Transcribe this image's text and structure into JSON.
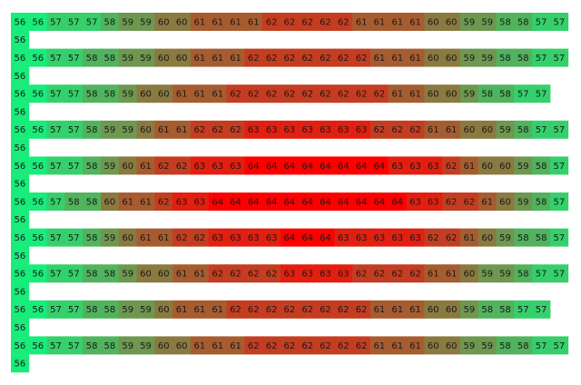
{
  "chart_data": {
    "type": "heatmap",
    "title": "",
    "xlabel": "",
    "ylabel": "",
    "grid": false,
    "legend": "none",
    "color_scale": {
      "min_value": 56,
      "max_value": 64,
      "min_color": "#18ec7a",
      "max_color": "#ff0000"
    },
    "rows": [
      {
        "values": [
          56,
          56,
          57,
          57,
          57,
          58,
          59,
          59,
          60,
          60,
          61,
          61,
          61,
          61,
          62,
          62,
          62,
          62,
          62,
          61,
          61,
          61,
          61,
          60,
          60,
          59,
          59,
          58,
          58,
          57,
          57
        ]
      },
      {
        "values": [
          56
        ]
      },
      {
        "values": [
          56,
          56,
          57,
          57,
          58,
          58,
          59,
          59,
          60,
          60,
          61,
          61,
          61,
          62,
          62,
          62,
          62,
          62,
          62,
          62,
          61,
          61,
          61,
          60,
          60,
          59,
          59,
          58,
          58,
          57,
          57
        ]
      },
      {
        "values": [
          56
        ]
      },
      {
        "values": [
          56,
          56,
          57,
          57,
          58,
          58,
          59,
          60,
          60,
          61,
          61,
          61,
          62,
          62,
          62,
          62,
          62,
          62,
          62,
          62,
          62,
          61,
          61,
          60,
          60,
          59,
          58,
          58,
          57,
          57
        ]
      },
      {
        "values": [
          56
        ]
      },
      {
        "values": [
          56,
          56,
          57,
          57,
          58,
          59,
          59,
          60,
          61,
          61,
          62,
          62,
          62,
          63,
          63,
          63,
          63,
          63,
          63,
          63,
          62,
          62,
          62,
          61,
          61,
          60,
          60,
          59,
          58,
          57,
          57
        ]
      },
      {
        "values": [
          56
        ]
      },
      {
        "values": [
          56,
          56,
          57,
          57,
          58,
          59,
          60,
          61,
          62,
          62,
          63,
          63,
          63,
          64,
          64,
          64,
          64,
          64,
          64,
          64,
          64,
          63,
          63,
          63,
          62,
          61,
          60,
          60,
          59,
          58,
          57
        ]
      },
      {
        "values": [
          56
        ]
      },
      {
        "values": [
          56,
          56,
          57,
          58,
          58,
          60,
          61,
          61,
          62,
          63,
          63,
          64,
          64,
          64,
          64,
          64,
          64,
          64,
          64,
          64,
          64,
          64,
          63,
          63,
          62,
          62,
          61,
          60,
          59,
          58,
          57
        ]
      },
      {
        "values": [
          56
        ]
      },
      {
        "values": [
          56,
          56,
          57,
          57,
          58,
          59,
          60,
          61,
          61,
          62,
          62,
          63,
          63,
          63,
          63,
          64,
          64,
          64,
          63,
          63,
          63,
          63,
          63,
          62,
          62,
          61,
          60,
          59,
          58,
          58,
          57
        ]
      },
      {
        "values": [
          56
        ]
      },
      {
        "values": [
          56,
          56,
          57,
          57,
          58,
          58,
          59,
          60,
          60,
          61,
          61,
          62,
          62,
          62,
          62,
          63,
          63,
          63,
          63,
          62,
          62,
          62,
          62,
          61,
          61,
          60,
          59,
          59,
          58,
          57,
          57
        ]
      },
      {
        "values": [
          56
        ]
      },
      {
        "values": [
          56,
          56,
          57,
          57,
          58,
          58,
          59,
          59,
          60,
          61,
          61,
          61,
          62,
          62,
          62,
          62,
          62,
          62,
          62,
          62,
          61,
          61,
          61,
          60,
          60,
          59,
          58,
          58,
          57,
          57
        ]
      },
      {
        "values": [
          56
        ]
      },
      {
        "values": [
          56,
          56,
          57,
          57,
          58,
          58,
          59,
          59,
          60,
          60,
          61,
          61,
          61,
          62,
          62,
          62,
          62,
          62,
          62,
          62,
          61,
          61,
          61,
          60,
          60,
          59,
          59,
          58,
          58,
          57,
          57
        ]
      },
      {
        "values": [
          56
        ]
      }
    ]
  }
}
